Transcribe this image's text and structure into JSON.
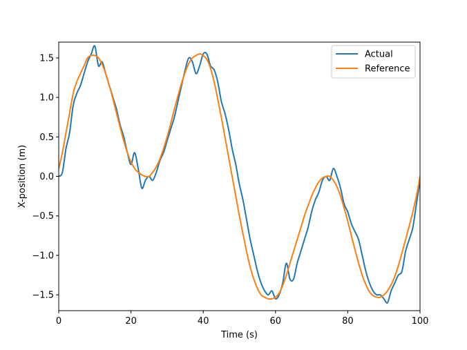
{
  "chart_data": {
    "type": "line",
    "title": "",
    "xlabel": "Time (s)",
    "ylabel": "X-position (m)",
    "xlim": [
      0,
      100
    ],
    "ylim": [
      -1.7,
      1.7
    ],
    "xticks": [
      0,
      20,
      40,
      60,
      80,
      100
    ],
    "xtick_labels": [
      "0",
      "20",
      "40",
      "60",
      "80",
      "100"
    ],
    "yticks": [
      -1.5,
      -1.0,
      -0.5,
      0.0,
      0.5,
      1.0,
      1.5
    ],
    "ytick_labels": [
      "−1.5",
      "−1.0",
      "−0.5",
      "0.0",
      "0.5",
      "1.0",
      "1.5"
    ],
    "grid": false,
    "legend_position": "upper right",
    "series": [
      {
        "name": "Actual",
        "color": "#1f77b4",
        "x": [
          0,
          1,
          2,
          3,
          4,
          5,
          6,
          7,
          8,
          9,
          10,
          11,
          12,
          13,
          14,
          15,
          16,
          17,
          18,
          19,
          20,
          21,
          22,
          23,
          24,
          25,
          26,
          27,
          28,
          29,
          30,
          31,
          32,
          33,
          34,
          35,
          36,
          37,
          38,
          39,
          40,
          41,
          42,
          43,
          44,
          45,
          46,
          47,
          48,
          49,
          50,
          51,
          52,
          53,
          54,
          55,
          56,
          57,
          58,
          59,
          60,
          61,
          62,
          63,
          64,
          65,
          66,
          67,
          68,
          69,
          70,
          71,
          72,
          73,
          74,
          75,
          76,
          77,
          78,
          79,
          80,
          81,
          82,
          83,
          84,
          85,
          86,
          87,
          88,
          89,
          90,
          91,
          92,
          93,
          94,
          95,
          96,
          97,
          98,
          99,
          100
        ],
        "y": [
          0.0,
          0.05,
          0.35,
          0.55,
          0.9,
          1.05,
          1.15,
          1.3,
          1.45,
          1.55,
          1.65,
          1.4,
          1.45,
          1.3,
          1.15,
          1.0,
          0.85,
          0.65,
          0.5,
          0.3,
          0.15,
          0.3,
          0.1,
          -0.15,
          -0.05,
          0.0,
          -0.05,
          0.05,
          0.2,
          0.3,
          0.45,
          0.6,
          0.75,
          0.95,
          1.15,
          1.35,
          1.5,
          1.45,
          1.3,
          1.4,
          1.55,
          1.55,
          1.4,
          1.35,
          1.2,
          0.95,
          0.8,
          0.6,
          0.35,
          0.15,
          -0.1,
          -0.3,
          -0.55,
          -0.8,
          -1.0,
          -1.2,
          -1.35,
          -1.45,
          -1.5,
          -1.45,
          -1.55,
          -1.5,
          -1.35,
          -1.1,
          -1.3,
          -1.3,
          -1.1,
          -0.95,
          -0.8,
          -0.65,
          -0.45,
          -0.3,
          -0.2,
          -0.05,
          0.0,
          -0.05,
          0.1,
          0.0,
          -0.15,
          -0.35,
          -0.45,
          -0.6,
          -0.7,
          -0.8,
          -1.0,
          -1.2,
          -1.35,
          -1.45,
          -1.5,
          -1.5,
          -1.55,
          -1.6,
          -1.45,
          -1.35,
          -1.25,
          -1.2,
          -0.95,
          -0.8,
          -0.65,
          -0.35,
          -0.05
        ]
      },
      {
        "name": "Reference",
        "color": "#ff7f0e",
        "x": [
          0,
          1,
          2,
          3,
          4,
          5,
          6,
          7,
          8,
          9,
          10,
          11,
          12,
          13,
          14,
          15,
          16,
          17,
          18,
          19,
          20,
          21,
          22,
          23,
          24,
          25,
          26,
          27,
          28,
          29,
          30,
          31,
          32,
          33,
          34,
          35,
          36,
          37,
          38,
          39,
          40,
          41,
          42,
          43,
          44,
          45,
          46,
          47,
          48,
          49,
          50,
          51,
          52,
          53,
          54,
          55,
          56,
          57,
          58,
          59,
          60,
          61,
          62,
          63,
          64,
          65,
          66,
          67,
          68,
          69,
          70,
          71,
          72,
          73,
          74,
          75,
          76,
          77,
          78,
          79,
          80,
          81,
          82,
          83,
          84,
          85,
          86,
          87,
          88,
          89,
          90,
          91,
          92,
          93,
          94,
          95,
          96,
          97,
          98,
          99,
          100
        ],
        "y": [
          0.1,
          0.3,
          0.55,
          0.8,
          1.05,
          1.2,
          1.3,
          1.4,
          1.5,
          1.53,
          1.53,
          1.5,
          1.42,
          1.3,
          1.15,
          0.98,
          0.8,
          0.62,
          0.45,
          0.3,
          0.18,
          0.1,
          0.05,
          0.02,
          0.0,
          0.0,
          0.05,
          0.12,
          0.22,
          0.35,
          0.5,
          0.67,
          0.85,
          1.02,
          1.18,
          1.32,
          1.43,
          1.5,
          1.53,
          1.55,
          1.53,
          1.48,
          1.37,
          1.2,
          0.98,
          0.75,
          0.5,
          0.25,
          0.0,
          -0.25,
          -0.5,
          -0.73,
          -0.95,
          -1.15,
          -1.3,
          -1.42,
          -1.5,
          -1.53,
          -1.55,
          -1.55,
          -1.53,
          -1.48,
          -1.38,
          -1.25,
          -1.1,
          -0.95,
          -0.8,
          -0.65,
          -0.5,
          -0.37,
          -0.25,
          -0.15,
          -0.07,
          -0.02,
          0.0,
          0.0,
          -0.05,
          -0.13,
          -0.25,
          -0.4,
          -0.57,
          -0.75,
          -0.93,
          -1.1,
          -1.25,
          -1.37,
          -1.46,
          -1.51,
          -1.53,
          -1.53,
          -1.5,
          -1.45,
          -1.37,
          -1.27,
          -1.13,
          -0.97,
          -0.8,
          -0.63,
          -0.45,
          -0.25,
          0.0
        ]
      }
    ]
  }
}
